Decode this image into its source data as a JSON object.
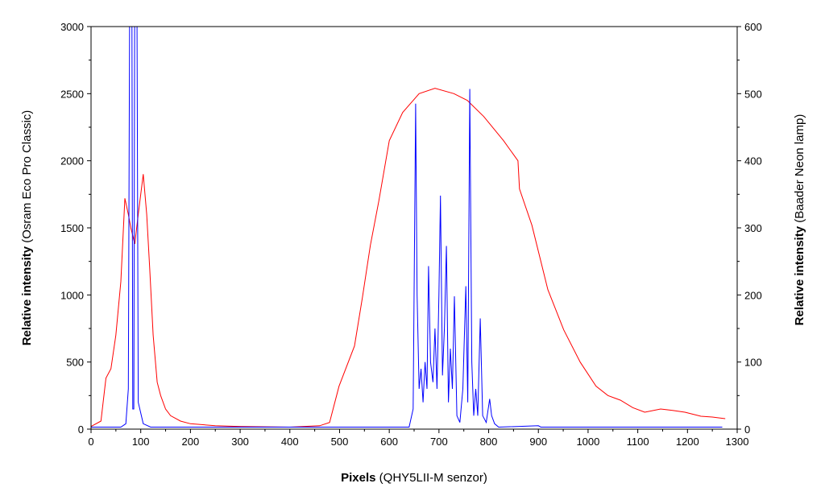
{
  "chart_data": {
    "type": "line",
    "title": "",
    "xlabel_bold": "Pixels",
    "xlabel_rest": " (QHY5LII-M senzor)",
    "ylabel_left_bold": "Relative intensity",
    "ylabel_left_rest": " (Osram Eco Pro Classic)",
    "ylabel_right_bold": "Relative intensity",
    "ylabel_right_rest": " (Baader Neon lamp)",
    "xlim": [
      0,
      1300
    ],
    "ylim_left": [
      0,
      3000
    ],
    "ylim_right": [
      0,
      600
    ],
    "x_ticks": [
      0,
      100,
      200,
      300,
      400,
      500,
      600,
      700,
      800,
      900,
      1000,
      1100,
      1200,
      1300
    ],
    "y_left_ticks": [
      0,
      500,
      1000,
      1500,
      2000,
      2500,
      3000
    ],
    "y_right_ticks": [
      0,
      100,
      200,
      300,
      400,
      500,
      600
    ],
    "grid": false,
    "legend": "none",
    "series": [
      {
        "axis": "left",
        "color": "#ff0000",
        "points": [
          [
            0,
            20
          ],
          [
            20,
            60
          ],
          [
            30,
            380
          ],
          [
            40,
            450
          ],
          [
            50,
            700
          ],
          [
            60,
            1100
          ],
          [
            68,
            1720
          ],
          [
            75,
            1600
          ],
          [
            80,
            1500
          ],
          [
            88,
            1380
          ],
          [
            95,
            1600
          ],
          [
            105,
            1900
          ],
          [
            112,
            1600
          ],
          [
            118,
            1200
          ],
          [
            125,
            700
          ],
          [
            133,
            350
          ],
          [
            140,
            250
          ],
          [
            150,
            150
          ],
          [
            160,
            100
          ],
          [
            180,
            60
          ],
          [
            200,
            40
          ],
          [
            250,
            25
          ],
          [
            300,
            20
          ],
          [
            400,
            15
          ],
          [
            460,
            25
          ],
          [
            480,
            50
          ],
          [
            499,
            320
          ],
          [
            530,
            620
          ],
          [
            546,
            980
          ],
          [
            562,
            1370
          ],
          [
            579,
            1700
          ],
          [
            600,
            2150
          ],
          [
            627,
            2360
          ],
          [
            660,
            2500
          ],
          [
            692,
            2540
          ],
          [
            730,
            2500
          ],
          [
            757,
            2450
          ],
          [
            790,
            2330
          ],
          [
            830,
            2150
          ],
          [
            859,
            2000
          ],
          [
            862,
            1790
          ],
          [
            887,
            1520
          ],
          [
            919,
            1040
          ],
          [
            951,
            740
          ],
          [
            984,
            500
          ],
          [
            1016,
            320
          ],
          [
            1040,
            250
          ],
          [
            1065,
            216
          ],
          [
            1090,
            160
          ],
          [
            1114,
            126
          ],
          [
            1146,
            150
          ],
          [
            1170,
            140
          ],
          [
            1195,
            126
          ],
          [
            1227,
            96
          ],
          [
            1250,
            90
          ],
          [
            1276,
            78
          ]
        ]
      },
      {
        "axis": "right",
        "color": "#0000ff",
        "points": [
          [
            0,
            3
          ],
          [
            60,
            3
          ],
          [
            70,
            8
          ],
          [
            75,
            60
          ],
          [
            78,
            700
          ],
          [
            82,
            700
          ],
          [
            84,
            30
          ],
          [
            86,
            30
          ],
          [
            88,
            700
          ],
          [
            92,
            700
          ],
          [
            95,
            40
          ],
          [
            105,
            8
          ],
          [
            120,
            3
          ],
          [
            640,
            3
          ],
          [
            648,
            30
          ],
          [
            653,
            485
          ],
          [
            656,
            200
          ],
          [
            660,
            60
          ],
          [
            664,
            90
          ],
          [
            668,
            40
          ],
          [
            672,
            100
          ],
          [
            676,
            60
          ],
          [
            679,
            243
          ],
          [
            683,
            100
          ],
          [
            688,
            70
          ],
          [
            692,
            150
          ],
          [
            696,
            60
          ],
          [
            700,
            200
          ],
          [
            703,
            348
          ],
          [
            707,
            80
          ],
          [
            711,
            150
          ],
          [
            715,
            273
          ],
          [
            719,
            40
          ],
          [
            723,
            120
          ],
          [
            727,
            60
          ],
          [
            731,
            198
          ],
          [
            736,
            20
          ],
          [
            742,
            10
          ],
          [
            748,
            60
          ],
          [
            754,
            213
          ],
          [
            758,
            40
          ],
          [
            762,
            507
          ],
          [
            766,
            100
          ],
          [
            770,
            20
          ],
          [
            774,
            60
          ],
          [
            778,
            20
          ],
          [
            783,
            165
          ],
          [
            788,
            20
          ],
          [
            795,
            10
          ],
          [
            802,
            45
          ],
          [
            806,
            20
          ],
          [
            812,
            8
          ],
          [
            820,
            3
          ],
          [
            900,
            5
          ],
          [
            905,
            3
          ],
          [
            1270,
            3
          ]
        ]
      }
    ]
  }
}
